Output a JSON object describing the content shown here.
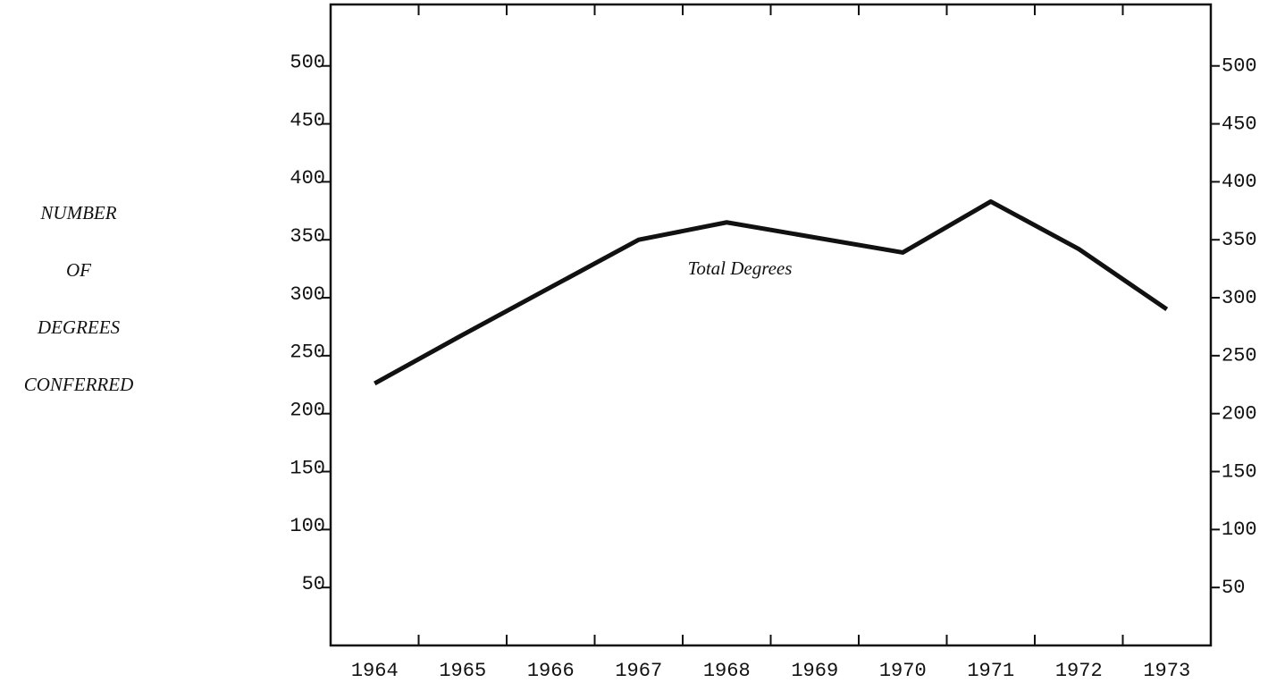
{
  "chart_data": {
    "type": "line",
    "ylabel": [
      "NUMBER",
      "OF",
      "DEGREES",
      "CONFERRED"
    ],
    "annotation": "Total Degrees",
    "categories": [
      "1964",
      "1965",
      "1966",
      "1967",
      "1968",
      "1969",
      "1970",
      "1971",
      "1972",
      "1973"
    ],
    "series": [
      {
        "name": "Total Degrees",
        "color": "#111111",
        "values": [
          226,
          268,
          309,
          350,
          365,
          352,
          339,
          383,
          342,
          290
        ]
      }
    ],
    "ylim": [
      0,
      553
    ],
    "yticks": [
      50,
      100,
      150,
      200,
      250,
      300,
      350,
      400,
      450,
      500
    ],
    "y2lim": [
      0,
      553
    ],
    "y2ticks": [
      50,
      100,
      150,
      200,
      250,
      300,
      350,
      400,
      450,
      500
    ],
    "grid": false
  }
}
